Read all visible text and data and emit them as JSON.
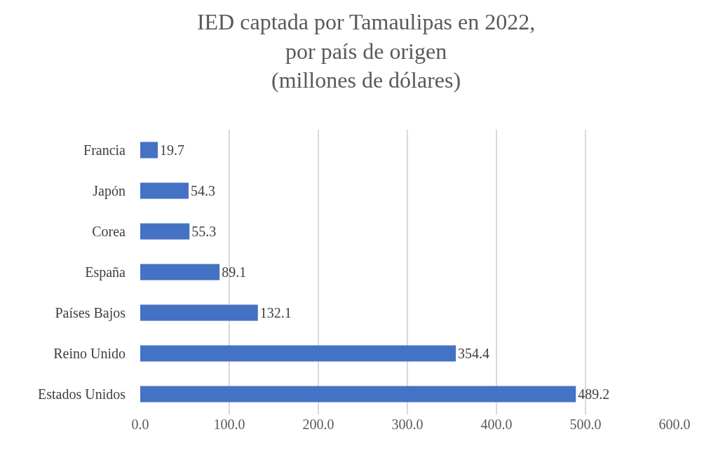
{
  "chart_data": {
    "type": "bar",
    "orientation": "horizontal",
    "title": "IED captada por Tamaulipas en 2022,\npor país de origen\n(millones de dólares)",
    "categories": [
      "Francia",
      "Japón",
      "Corea",
      "España",
      "Países Bajos",
      "Reino Unido",
      "Estados Unidos"
    ],
    "values": [
      19.7,
      54.3,
      55.3,
      89.1,
      132.1,
      354.4,
      489.2
    ],
    "color": "#4472c4",
    "xlim": [
      0,
      600
    ],
    "xticks": [
      {
        "value": 0,
        "label": "0.0"
      },
      {
        "value": 100,
        "label": "100.0"
      },
      {
        "value": 200,
        "label": "200.0"
      },
      {
        "value": 300,
        "label": "300.0"
      },
      {
        "value": 400,
        "label": "400.0"
      },
      {
        "value": 500,
        "label": "500.0"
      },
      {
        "value": 600,
        "label": "600.0"
      }
    ],
    "grid": "x",
    "data_labels": true,
    "legend": false
  }
}
